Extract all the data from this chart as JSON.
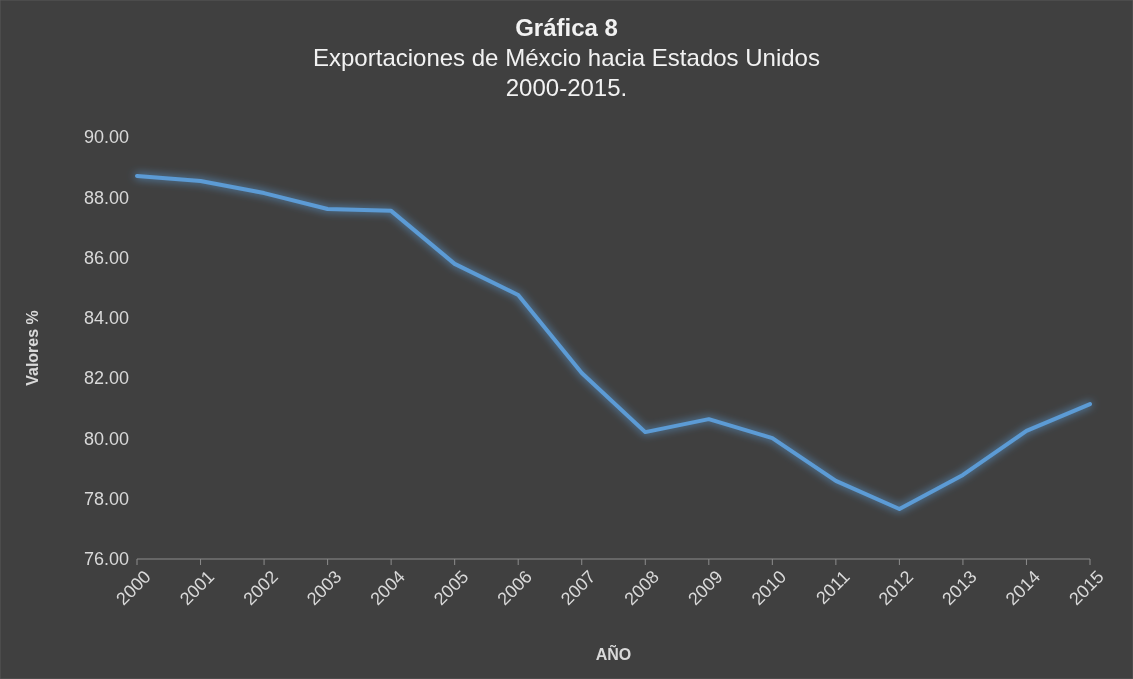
{
  "chart_data": {
    "type": "line",
    "title": "Gráfica 8",
    "subtitle": "Exportaciones de Méxcio hacia Estados Unidos\n2000-2015.",
    "xlabel": "AÑO",
    "ylabel": "Valores %",
    "categories": [
      "2000",
      "2001",
      "2002",
      "2003",
      "2004",
      "2005",
      "2006",
      "2007",
      "2008",
      "2009",
      "2010",
      "2011",
      "2012",
      "2013",
      "2014",
      "2015"
    ],
    "series": [
      {
        "color": "#5b9bd5",
        "values": [
          88.71,
          88.54,
          88.14,
          87.61,
          87.55,
          85.79,
          84.76,
          82.17,
          80.21,
          80.64,
          80.01,
          78.59,
          77.66,
          78.79,
          80.25,
          81.14
        ]
      }
    ],
    "ylim": [
      76,
      90
    ],
    "yticks": [
      {
        "value": 76,
        "label": "76.00"
      },
      {
        "value": 78,
        "label": "78.00"
      },
      {
        "value": 80,
        "label": "80.00"
      },
      {
        "value": 82,
        "label": "82.00"
      },
      {
        "value": 84,
        "label": "84.00"
      },
      {
        "value": 86,
        "label": "86.00"
      },
      {
        "value": 88,
        "label": "88.00"
      },
      {
        "value": 90,
        "label": "90.00"
      }
    ],
    "grid": false,
    "marker": "none",
    "line_style": "solid"
  }
}
